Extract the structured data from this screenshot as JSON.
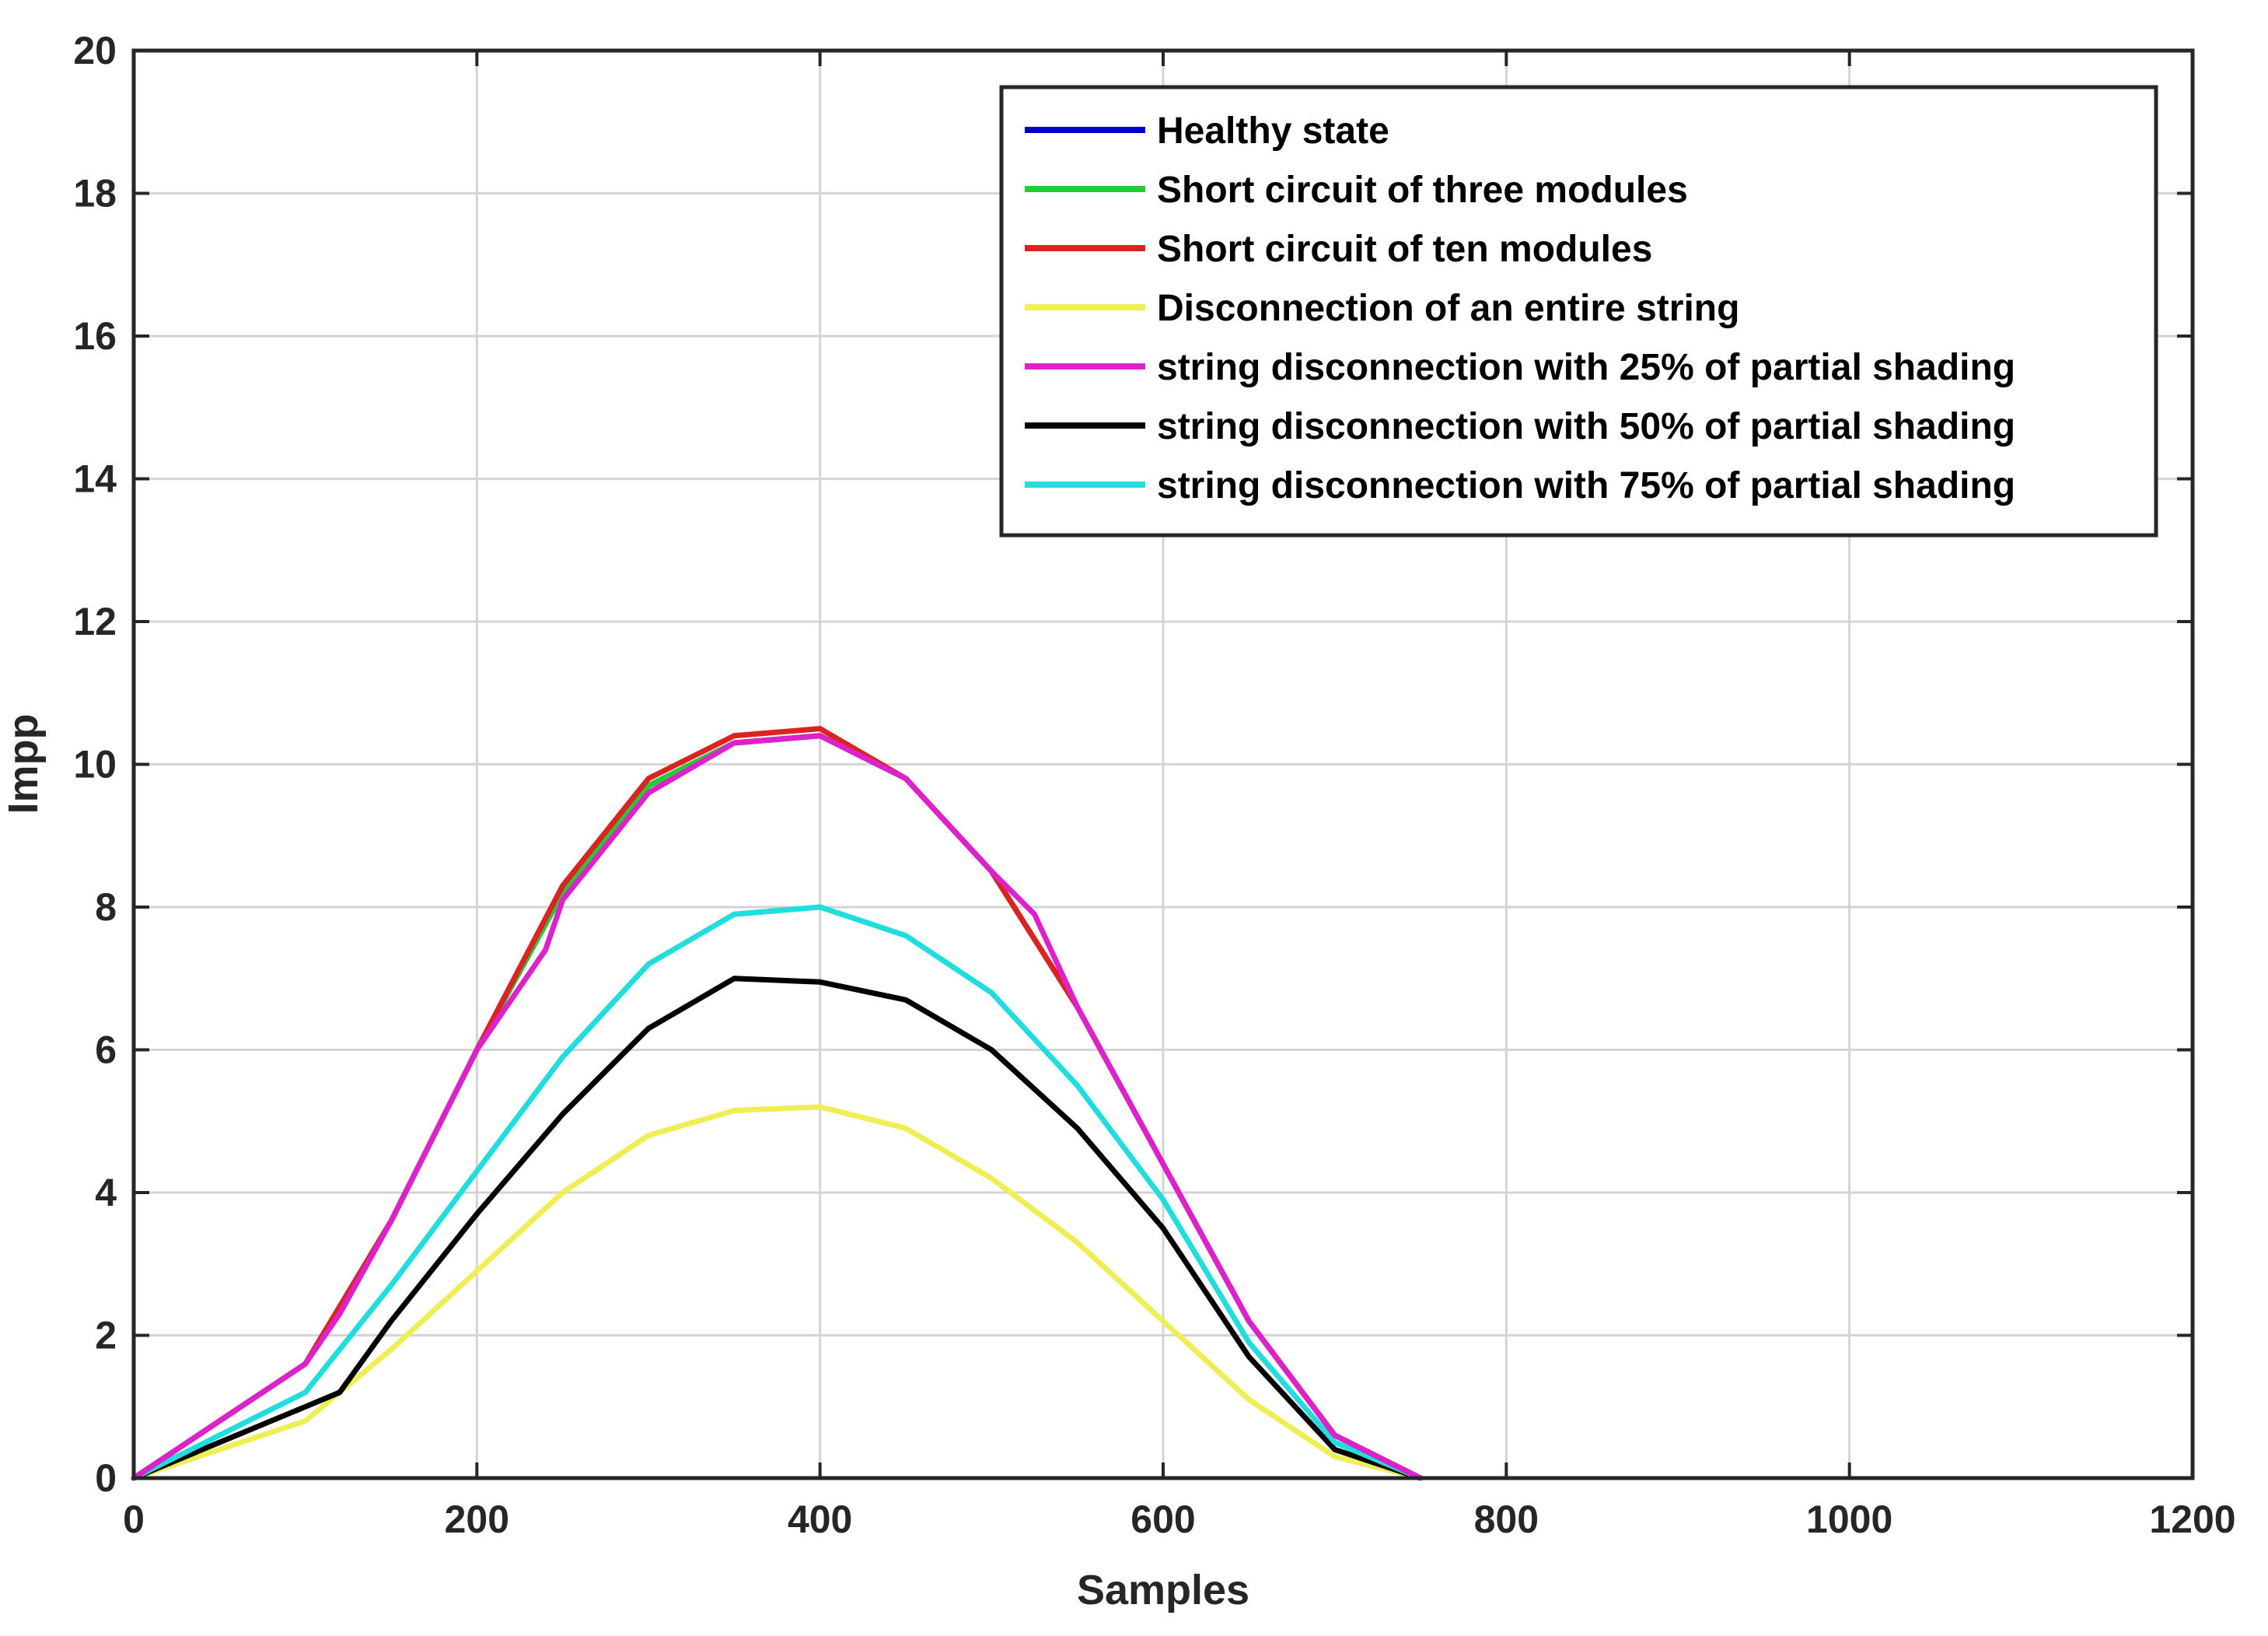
{
  "chart_data": {
    "type": "line",
    "title": "",
    "xlabel": "Samples",
    "ylabel": "Impp",
    "xlim": [
      0,
      1200
    ],
    "ylim": [
      0,
      20
    ],
    "xticks": [
      0,
      200,
      400,
      600,
      800,
      1000,
      1200
    ],
    "yticks": [
      0,
      2,
      4,
      6,
      8,
      10,
      12,
      14,
      16,
      18,
      20
    ],
    "xtick_labels": [
      "0",
      "200",
      "400",
      "600",
      "800",
      "1000",
      "1200"
    ],
    "ytick_labels": [
      "0",
      "2",
      "4",
      "6",
      "8",
      "10",
      "12",
      "14",
      "16",
      "18",
      "20"
    ],
    "grid": true,
    "legend_position": "top-right",
    "series": [
      {
        "name": "Healthy state",
        "color": "#0000cc",
        "x": [
          0,
          50,
          100,
          150,
          200,
          250,
          300,
          350,
          400,
          450,
          500,
          550,
          600,
          650,
          700,
          750
        ],
        "y": [
          0,
          0.8,
          1.6,
          3.6,
          6.0,
          8.2,
          9.7,
          10.3,
          10.4,
          9.8,
          8.5,
          6.6,
          4.4,
          2.2,
          0.6,
          0
        ]
      },
      {
        "name": "Short circuit of three modules",
        "color": "#22cc33",
        "x": [
          0,
          50,
          100,
          150,
          200,
          250,
          300,
          350,
          400,
          450,
          500,
          550,
          600,
          650,
          700,
          750
        ],
        "y": [
          0,
          0.8,
          1.6,
          3.6,
          6.0,
          8.2,
          9.7,
          10.3,
          10.4,
          9.8,
          8.5,
          6.6,
          4.4,
          2.2,
          0.6,
          0
        ]
      },
      {
        "name": "Short circuit of ten modules",
        "color": "#dd2222",
        "x": [
          0,
          50,
          100,
          150,
          200,
          250,
          300,
          350,
          400,
          450,
          500,
          550,
          600,
          650,
          700,
          750
        ],
        "y": [
          0,
          0.8,
          1.6,
          3.6,
          6.0,
          8.3,
          9.8,
          10.4,
          10.5,
          9.8,
          8.5,
          6.6,
          4.4,
          2.2,
          0.6,
          0
        ]
      },
      {
        "name": "Disconnection of an entire string",
        "color": "#eeee55",
        "x": [
          0,
          50,
          100,
          150,
          200,
          250,
          300,
          350,
          400,
          450,
          500,
          550,
          600,
          650,
          700,
          750
        ],
        "y": [
          0,
          0.4,
          0.8,
          1.8,
          2.9,
          4.0,
          4.8,
          5.15,
          5.2,
          4.9,
          4.2,
          3.3,
          2.2,
          1.1,
          0.3,
          0
        ]
      },
      {
        "name": "string disconnection with 25% of partial shading",
        "color": "#dd22cc",
        "x": [
          0,
          50,
          100,
          120,
          150,
          200,
          240,
          250,
          300,
          350,
          400,
          450,
          500,
          525,
          550,
          600,
          650,
          700,
          750
        ],
        "y": [
          0,
          0.8,
          1.6,
          2.3,
          3.6,
          6.0,
          7.4,
          8.1,
          9.6,
          10.3,
          10.4,
          9.8,
          8.5,
          7.9,
          6.6,
          4.4,
          2.2,
          0.6,
          0
        ]
      },
      {
        "name": "string disconnection with 50% of partial shading",
        "color": "#000000",
        "x": [
          0,
          50,
          100,
          120,
          150,
          200,
          250,
          300,
          350,
          400,
          450,
          500,
          550,
          600,
          650,
          700,
          750
        ],
        "y": [
          0,
          0.5,
          1.0,
          1.2,
          2.2,
          3.7,
          5.1,
          6.3,
          7.0,
          6.95,
          6.7,
          6.0,
          4.9,
          3.5,
          1.7,
          0.4,
          0
        ]
      },
      {
        "name": "string disconnection with 75% of partial shading",
        "color": "#22dddd",
        "x": [
          0,
          50,
          100,
          120,
          150,
          200,
          250,
          300,
          350,
          400,
          450,
          500,
          550,
          600,
          650,
          700,
          750
        ],
        "y": [
          0,
          0.6,
          1.2,
          1.8,
          2.7,
          4.3,
          5.9,
          7.2,
          7.9,
          8.0,
          7.6,
          6.8,
          5.5,
          3.9,
          1.9,
          0.5,
          0
        ]
      }
    ]
  }
}
